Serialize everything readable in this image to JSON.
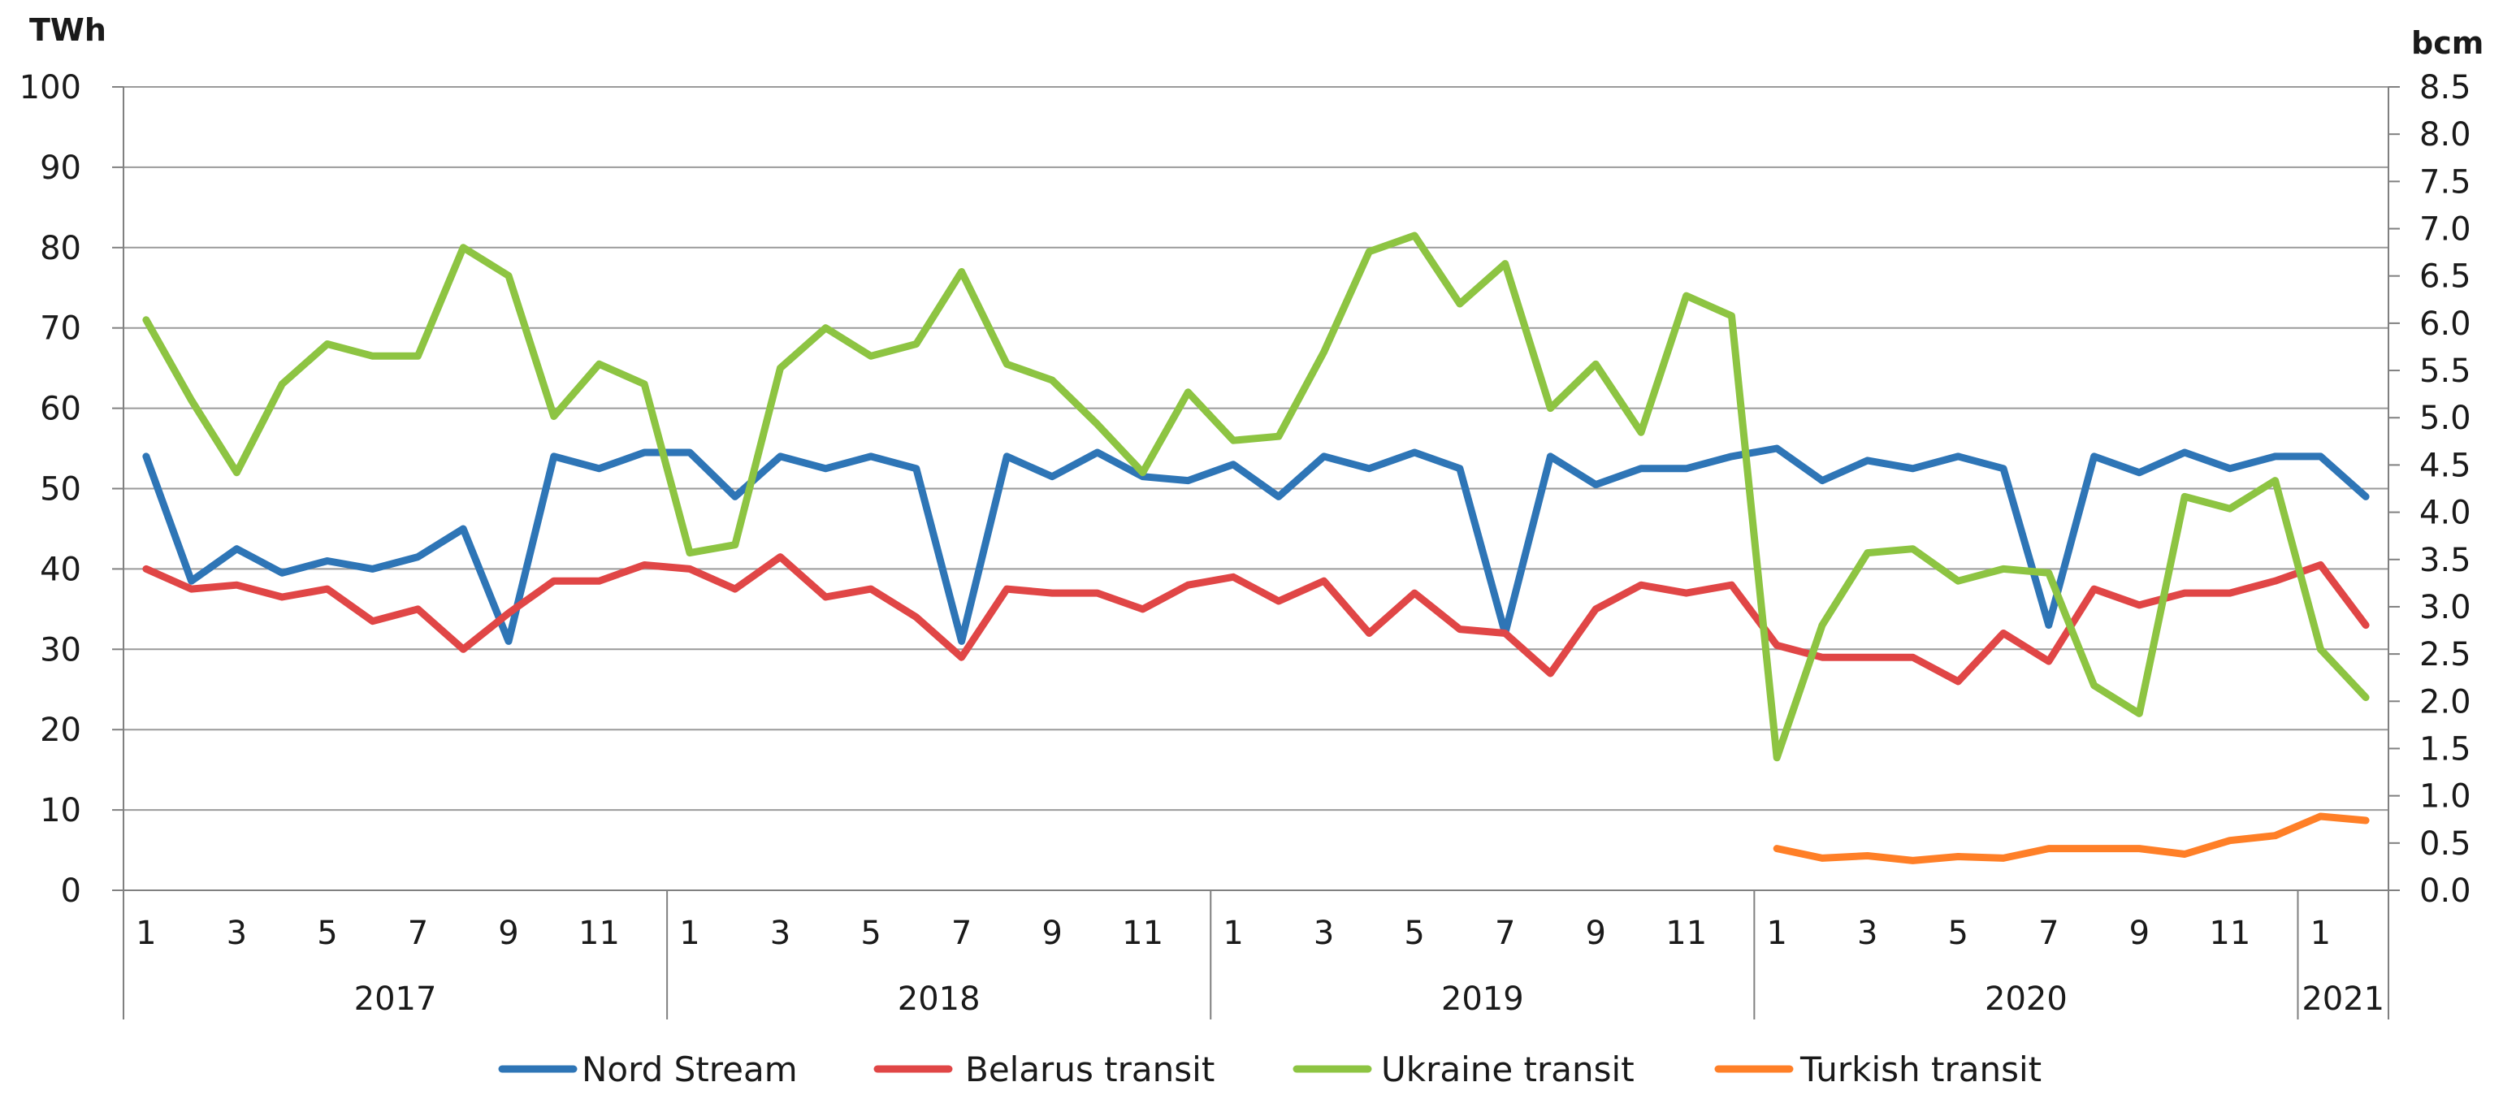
{
  "chart_data": {
    "type": "line",
    "left_unit": "TWh",
    "right_unit": "bcm",
    "y_left": {
      "min": 0,
      "max": 100,
      "ticks": [
        "0",
        "10",
        "20",
        "30",
        "40",
        "50",
        "60",
        "70",
        "80",
        "90",
        "100"
      ]
    },
    "y_right": {
      "min": 0,
      "max": 8.5,
      "ticks": [
        "0.0",
        "0.5",
        "1.0",
        "1.5",
        "2.0",
        "2.5",
        "3.0",
        "3.5",
        "4.0",
        "4.5",
        "5.0",
        "5.5",
        "6.0",
        "6.5",
        "7.0",
        "7.5",
        "8.0",
        "8.5"
      ]
    },
    "grid": true,
    "legend_position": "bottom",
    "month_ticks": [
      "1",
      "3",
      "5",
      "7",
      "9",
      "11",
      "1",
      "3",
      "5",
      "7",
      "9",
      "11",
      "1",
      "3",
      "5",
      "7",
      "9",
      "11",
      "1",
      "3",
      "5",
      "7",
      "9",
      "11",
      "1"
    ],
    "years": [
      "2017",
      "2018",
      "2019",
      "2020",
      "2021"
    ],
    "series": [
      {
        "name": "Nord Stream",
        "color": "#2E75B6",
        "start_index": 0,
        "values": [
          54,
          38.5,
          42.5,
          39.5,
          41,
          40,
          41.5,
          45,
          31,
          54,
          52.5,
          54.5,
          54.5,
          49,
          54,
          52.5,
          54,
          52.5,
          31,
          54,
          51.5,
          54.5,
          51.5,
          51,
          53,
          49,
          54,
          52.5,
          54.5,
          52.5,
          32,
          54,
          50.5,
          52.5,
          52.5,
          54,
          55,
          51,
          53.5,
          52.5,
          54,
          52.5,
          33,
          54,
          52,
          54.5,
          52.5,
          54,
          54,
          49
        ]
      },
      {
        "name": "Belarus transit",
        "color": "#E04646",
        "start_index": 0,
        "values": [
          40,
          37.5,
          38,
          36.5,
          37.5,
          33.5,
          35,
          30,
          34.5,
          38.5,
          38.5,
          40.5,
          40,
          37.5,
          41.5,
          36.5,
          37.5,
          34,
          29,
          37.5,
          37,
          37,
          35,
          38,
          39,
          36,
          38.5,
          32,
          37,
          32.5,
          32,
          27,
          35,
          38,
          37,
          38,
          30.5,
          29,
          29,
          29,
          26,
          32,
          28.5,
          37.5,
          35.5,
          37,
          37,
          38.5,
          40.5,
          33
        ]
      },
      {
        "name": "Ukraine transit",
        "color": "#8DC442",
        "start_index": 0,
        "values": [
          71,
          61,
          52,
          63,
          68,
          66.5,
          66.5,
          80,
          76.5,
          59,
          65.5,
          63,
          42,
          43,
          65,
          70,
          66.5,
          68,
          77,
          65.5,
          63.5,
          58,
          52,
          62,
          56,
          56.5,
          67,
          79.5,
          81.5,
          73,
          78,
          60,
          65.5,
          57,
          74,
          71.5,
          16.5,
          33,
          42,
          42.5,
          38.5,
          40,
          39.5,
          25.5,
          22,
          49,
          47.5,
          51,
          30,
          24
        ]
      },
      {
        "name": "Turkish transit",
        "color": "#FF7F27",
        "start_index": 36,
        "values": [
          5.2,
          4,
          4.3,
          3.7,
          4.2,
          4,
          5.2,
          5.2,
          5.2,
          4.5,
          6.2,
          6.8,
          9.2,
          8.7
        ]
      }
    ]
  }
}
